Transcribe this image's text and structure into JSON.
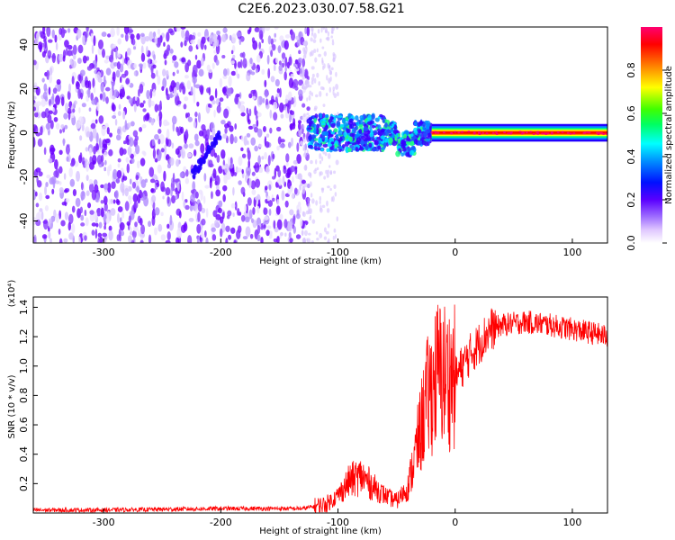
{
  "title": "C2E6.2023.030.07.58.G21",
  "chart_data": [
    {
      "type": "heatmap",
      "xlabel": "Height of straight line (km)",
      "ylabel": "Frequency (Hz)",
      "xlim": [
        -360,
        130
      ],
      "ylim": [
        -50,
        48
      ],
      "xticks": [
        -300,
        -200,
        -100,
        0,
        100
      ],
      "yticks": [
        -40,
        -20,
        0,
        20,
        40
      ],
      "colorbar": {
        "label": "Normalized spectral amplitude",
        "range": [
          0.0,
          1.0
        ],
        "ticks": [
          0.0,
          0.2,
          0.4,
          0.6,
          0.8
        ],
        "colors": [
          "#ffffff",
          "#e8d8ff",
          "#a070ff",
          "#6a00ff",
          "#2000ff",
          "#0090ff",
          "#00ffff",
          "#00ff60",
          "#40ff00",
          "#ffff00",
          "#ff8000",
          "#ff0000",
          "#ff0060"
        ]
      },
      "regions": [
        {
          "x_range": [
            -360,
            -125
          ],
          "freq_range": [
            -50,
            48
          ],
          "amplitude": 0.2,
          "note_color": "#7a1fff"
        },
        {
          "x_range": [
            -225,
            -200
          ],
          "freq_center": -12,
          "amplitude": 0.3
        },
        {
          "x_range": [
            -125,
            -20
          ],
          "freq_center": 0,
          "amplitude": 0.45
        },
        {
          "x_range": [
            -20,
            130
          ],
          "freq_center": 0,
          "amplitude": 0.9
        }
      ]
    },
    {
      "type": "line",
      "xlabel": "Height of straight line (km)",
      "ylabel": "SNR (10 * v/v)",
      "scale_label": "(x10⁴)",
      "xlim": [
        -360,
        130
      ],
      "ylim": [
        0,
        1.47
      ],
      "xticks": [
        -300,
        -200,
        -100,
        0,
        100
      ],
      "yticks": [
        0.2,
        0.4,
        0.6,
        0.8,
        1.0,
        1.2,
        1.4
      ],
      "color": "#ff0000",
      "series": [
        {
          "x": [
            -360,
            -300,
            -200,
            -130,
            -110,
            -100,
            -90,
            -80,
            -70,
            -60,
            -50,
            -40,
            -30,
            -25,
            -20,
            -15,
            -10,
            -5,
            0,
            10,
            20,
            30,
            40,
            60,
            80,
            100,
            120,
            130
          ],
          "y": [
            0.02,
            0.02,
            0.03,
            0.03,
            0.06,
            0.12,
            0.22,
            0.25,
            0.18,
            0.12,
            0.08,
            0.18,
            0.55,
            0.75,
            0.85,
            0.95,
            0.95,
            0.92,
            0.92,
            1.05,
            1.15,
            1.25,
            1.28,
            1.3,
            1.28,
            1.25,
            1.22,
            1.2
          ]
        }
      ]
    }
  ]
}
